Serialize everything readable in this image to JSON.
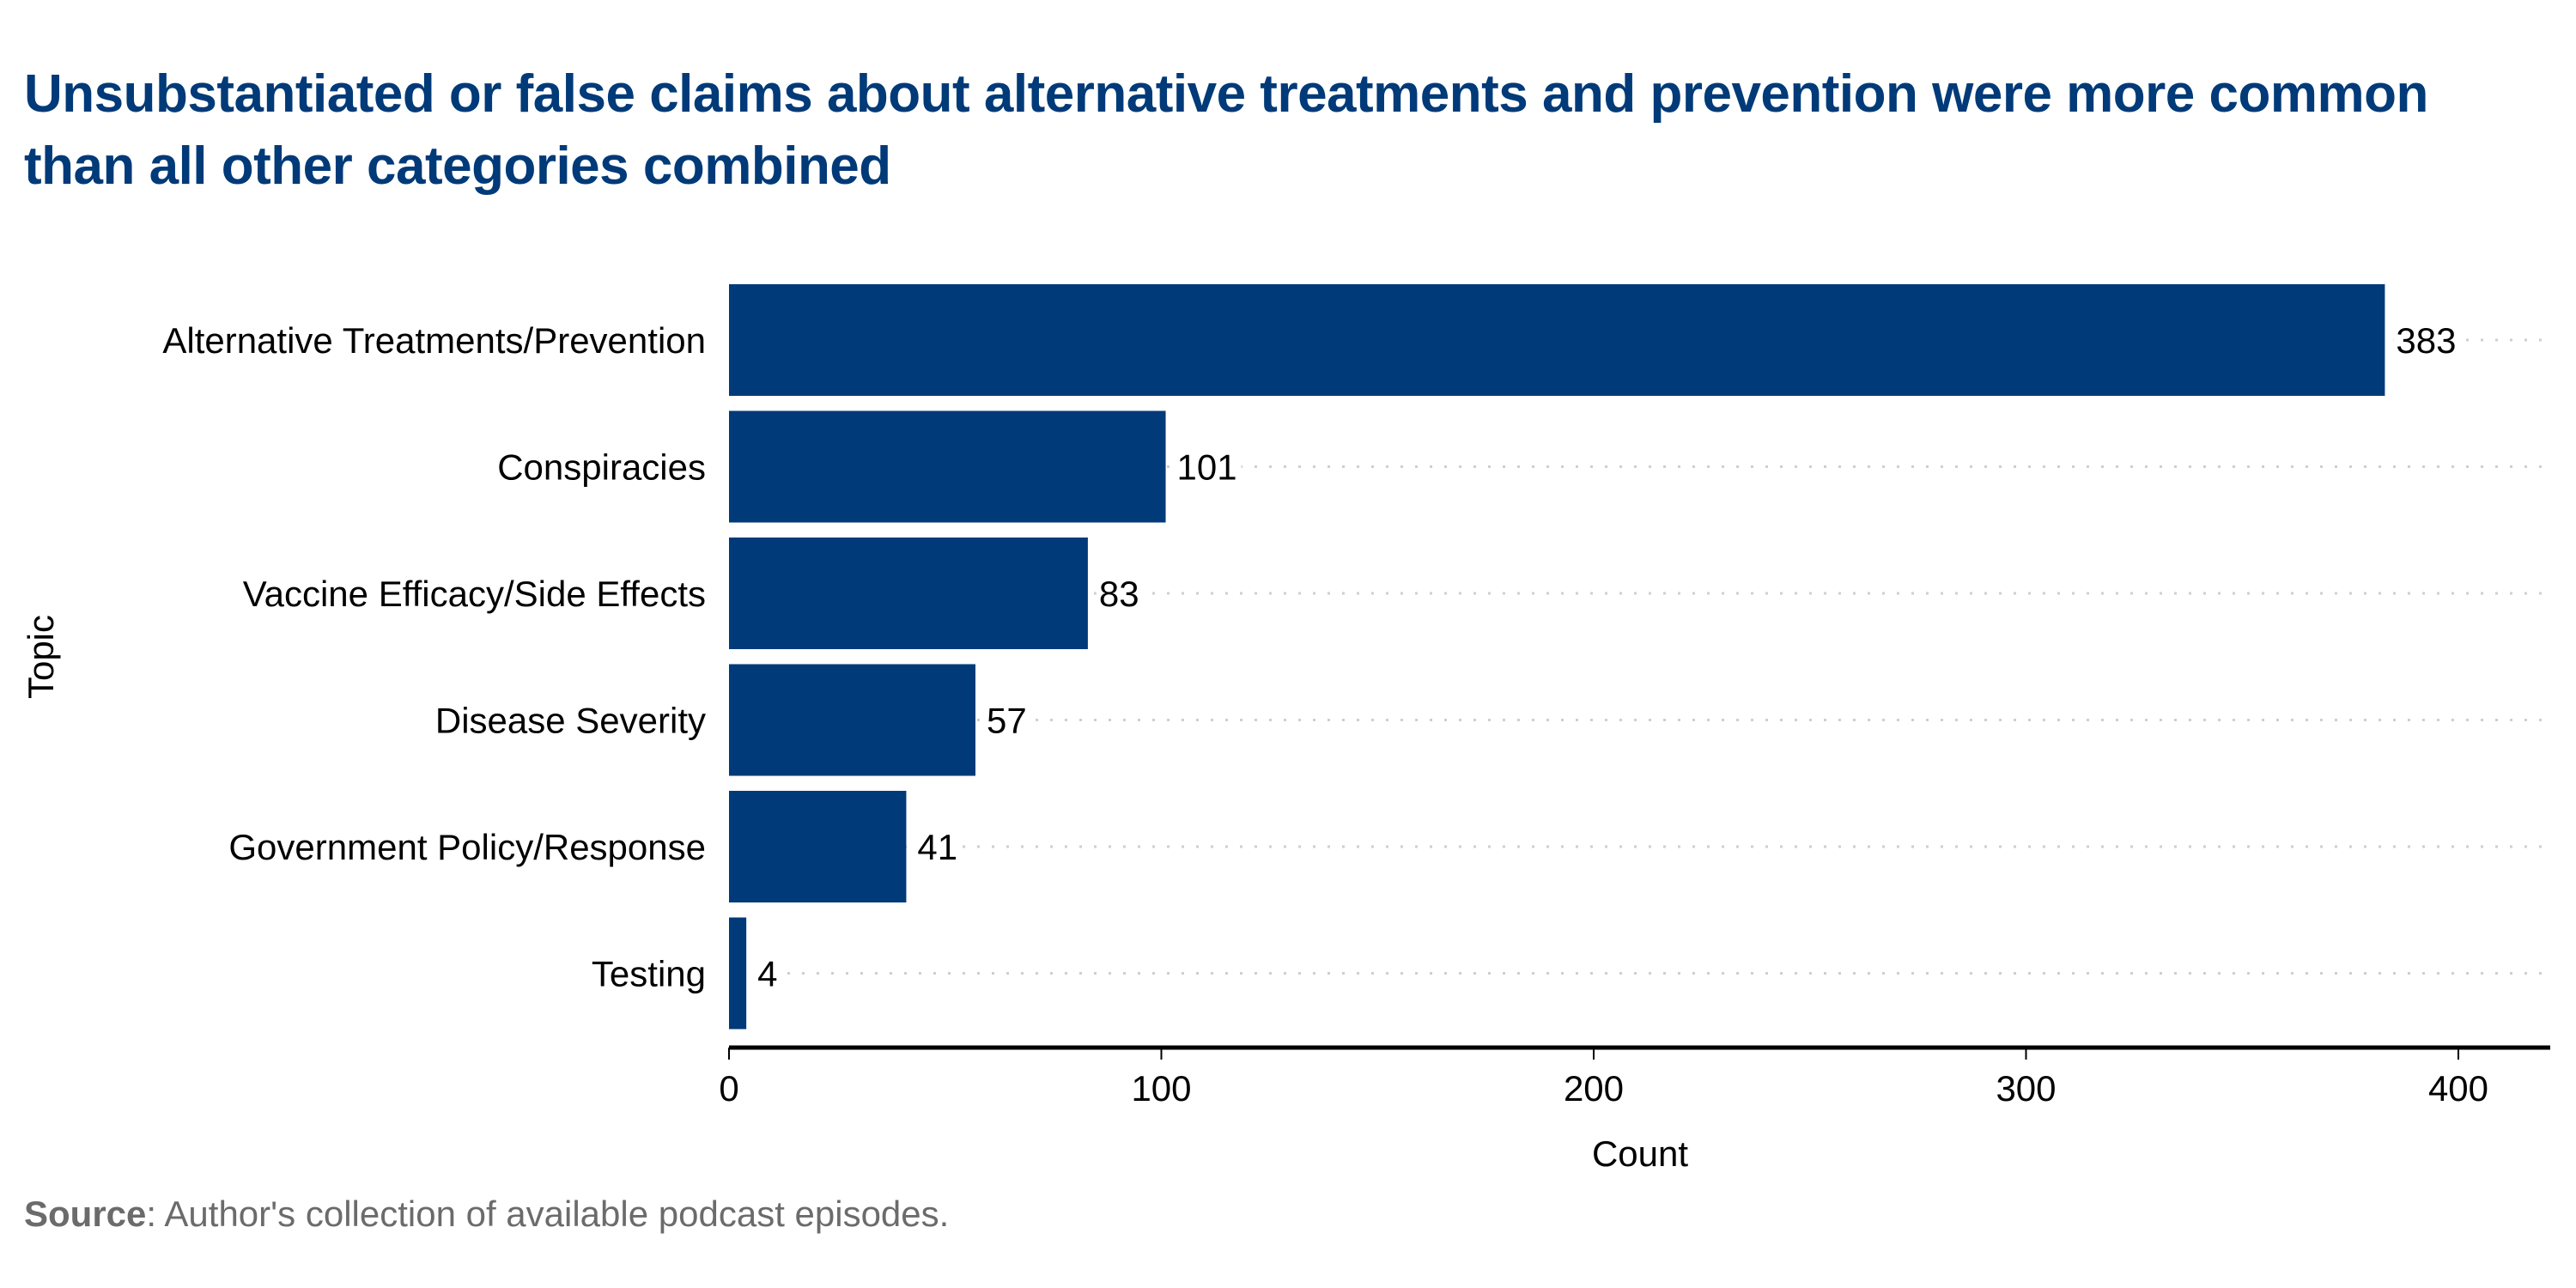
{
  "chart_data": {
    "type": "bar",
    "orientation": "horizontal",
    "title": "Unsubstantiated or false claims about alternative treatments and prevention were more common than all other categories combined",
    "categories": [
      "Alternative Treatments/Prevention",
      "Conspiracies",
      "Vaccine Efficacy/Side Effects",
      "Disease Severity",
      "Government Policy/Response",
      "Testing"
    ],
    "values": [
      383,
      101,
      83,
      57,
      41,
      4
    ],
    "xlabel": "Count",
    "ylabel": "Topic",
    "xlim": [
      0,
      420
    ],
    "xticks": [
      0,
      100,
      200,
      300,
      400
    ],
    "xtick_labels": [
      "0",
      "100",
      "200",
      "300",
      "400"
    ],
    "grid": "horizontal dotted guide lines per category",
    "data_labels": true,
    "bar_color": "#003a78",
    "source_label": "Source",
    "source_text": ": Author's collection of available podcast episodes."
  }
}
